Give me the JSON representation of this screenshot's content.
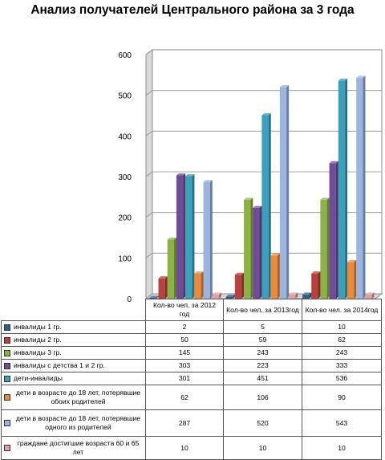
{
  "chart_data": {
    "type": "bar",
    "title": "Анализ получателей Центрального района за 3 года",
    "categories": [
      "Кол-во чел. за 2012 год",
      "Кол-во чел. за 2013год",
      "Кол-во чел. за 2014год"
    ],
    "ylim": [
      0,
      600
    ],
    "yticks": [
      "0",
      "100",
      "200",
      "300",
      "400",
      "500",
      "600"
    ],
    "grid": true,
    "legend": "table-below",
    "series": [
      {
        "name": "инвалиды 1 гр.",
        "color": "#2f5f8f",
        "values": [
          2,
          5,
          10
        ]
      },
      {
        "name": "инвалиды 2 гр.",
        "color": "#b8413e",
        "values": [
          50,
          59,
          62
        ]
      },
      {
        "name": "инвалиды 3 гр.",
        "color": "#8db244",
        "values": [
          145,
          243,
          243
        ]
      },
      {
        "name": "инвалиды с детства 1 и 2 гр.",
        "color": "#6f4b98",
        "values": [
          303,
          223,
          333
        ]
      },
      {
        "name": "дети-инвалиды",
        "color": "#3aa0bc",
        "values": [
          301,
          451,
          536
        ]
      },
      {
        "name": "дети в возрасте до 18 лет, потерявшие обоих родителей",
        "color": "#ec8a3a",
        "values": [
          62,
          106,
          90
        ]
      },
      {
        "name": "дети в возрасте до 18 лет, потерявшие одного из родителей",
        "color": "#9bb4e0",
        "values": [
          287,
          520,
          543
        ]
      },
      {
        "name": "граждане достигшие возраста 60 и 65 лет",
        "color": "#e3a0a3",
        "values": [
          10,
          10,
          10
        ]
      }
    ]
  }
}
